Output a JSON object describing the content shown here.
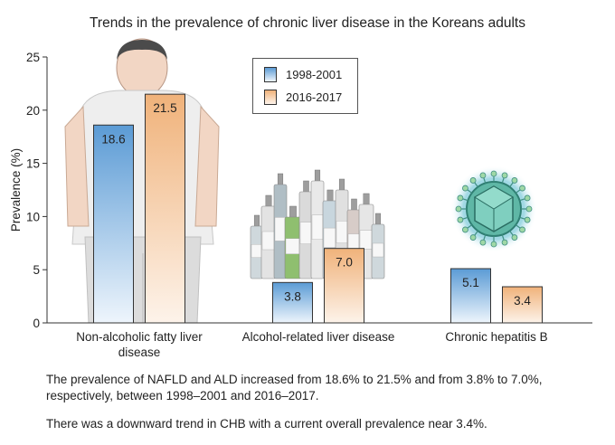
{
  "title": "Trends in the prevalence of chronic liver disease in the Koreans adults",
  "chart_data": {
    "type": "bar",
    "title": "Trends in the prevalence of chronic liver disease in the Koreans adults",
    "ylabel": "Prevalence (%)",
    "xlabel": "",
    "ylim": [
      0,
      25
    ],
    "yticks": [
      0,
      5,
      10,
      15,
      20,
      25
    ],
    "grid": false,
    "legend_position": "top-center",
    "categories": [
      [
        "Non-alcoholic fatty liver",
        "disease"
      ],
      [
        "Alcohol-related liver disease"
      ],
      [
        "Chronic hepatitis B"
      ]
    ],
    "series": [
      {
        "name": "1998-2001",
        "values": [
          18.6,
          3.8,
          5.1
        ],
        "labels": [
          "18.6",
          "3.8",
          "5.1"
        ],
        "color": "#5b9bd5"
      },
      {
        "name": "2016-2017",
        "values": [
          21.5,
          7.0,
          3.4
        ],
        "labels": [
          "21.5",
          "7.0",
          "3.4"
        ],
        "color": "#f0b27a"
      }
    ]
  },
  "notes": [
    "The prevalence of NAFLD and ALD increased from 18.6% to 21.5% and from 3.8% to 7.0%,",
    "respectively, between 1998–2001 and 2016–2017.",
    "There was a downward trend in CHB with a current overall prevalence near 3.4%."
  ],
  "illustrations": [
    "person-illustration",
    "liquor-bottles-illustration",
    "virus-illustration"
  ]
}
